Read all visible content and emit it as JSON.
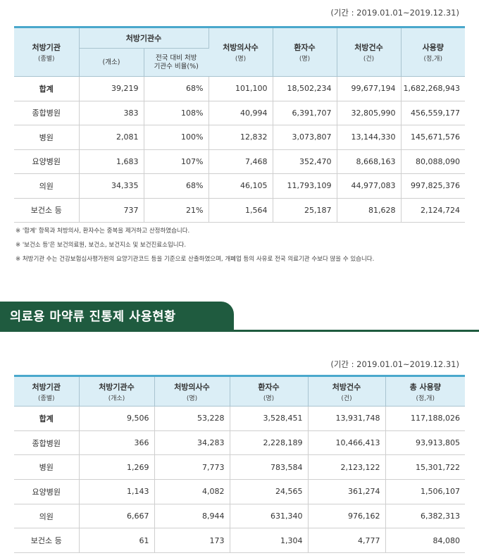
{
  "table1": {
    "period": "(기간 : 2019.01.01~2019.12.31)",
    "headers": {
      "institution": "처방기관",
      "institution_sub": "(종별)",
      "institution_count": "처방기관수",
      "count_unit": "(개소)",
      "ratio": "전국 대비 처방 기관수 비율(%)",
      "doctors": "처방의사수",
      "doctors_unit": "(명)",
      "patients": "환자수",
      "patients_unit": "(명)",
      "prescriptions": "처방건수",
      "prescriptions_unit": "(건)",
      "usage": "사용량",
      "usage_unit": "(정,개)"
    },
    "rows": [
      {
        "name": "합계",
        "count": "39,219",
        "ratio": "68%",
        "doctors": "101,100",
        "patients": "18,502,234",
        "prescriptions": "99,677,194",
        "usage": "1,682,268,943"
      },
      {
        "name": "종합병원",
        "count": "383",
        "ratio": "108%",
        "doctors": "40,994",
        "patients": "6,391,707",
        "prescriptions": "32,805,990",
        "usage": "456,559,177"
      },
      {
        "name": "병원",
        "count": "2,081",
        "ratio": "100%",
        "doctors": "12,832",
        "patients": "3,073,807",
        "prescriptions": "13,144,330",
        "usage": "145,671,576"
      },
      {
        "name": "요양병원",
        "count": "1,683",
        "ratio": "107%",
        "doctors": "7,468",
        "patients": "352,470",
        "prescriptions": "8,668,163",
        "usage": "80,088,090"
      },
      {
        "name": "의원",
        "count": "34,335",
        "ratio": "68%",
        "doctors": "46,105",
        "patients": "11,793,109",
        "prescriptions": "44,977,083",
        "usage": "997,825,376"
      },
      {
        "name": "보건소 등",
        "count": "737",
        "ratio": "21%",
        "doctors": "1,564",
        "patients": "25,187",
        "prescriptions": "81,628",
        "usage": "2,124,724"
      }
    ]
  },
  "notes": [
    "※ '합계' 항목과 처방의사, 환자수는 중복을 제거하고 산정하였습니다.",
    "※ '보건소 등'은 보건의료원, 보건소, 보건지소 및 보건진료소입니다.",
    "※ 처방기관 수는 건강보험심사평가원의 요양기관코드 등을 기준으로 산출하였으며, 개폐업 등의 사유로 전국 의료기관 수보다 많을 수 있습니다."
  ],
  "section_title": "의료용 마약류 진통제 사용현황",
  "table2": {
    "period": "(기간 : 2019.01.01~2019.12.31)",
    "headers": {
      "institution": "처방기관",
      "institution_sub": "(종별)",
      "institution_count": "처방기관수",
      "count_unit": "(개소)",
      "doctors": "처방의사수",
      "doctors_unit": "(명)",
      "patients": "환자수",
      "patients_unit": "(명)",
      "prescriptions": "처방건수",
      "prescriptions_unit": "(건)",
      "usage": "총 사용량",
      "usage_unit": "(정,개)"
    },
    "rows": [
      {
        "name": "합계",
        "count": "9,506",
        "doctors": "53,228",
        "patients": "3,528,451",
        "prescriptions": "13,931,748",
        "usage": "117,188,026"
      },
      {
        "name": "종합병원",
        "count": "366",
        "doctors": "34,283",
        "patients": "2,228,189",
        "prescriptions": "10,466,413",
        "usage": "93,913,805"
      },
      {
        "name": "병원",
        "count": "1,269",
        "doctors": "7,773",
        "patients": "783,584",
        "prescriptions": "2,123,122",
        "usage": "15,301,722"
      },
      {
        "name": "요양병원",
        "count": "1,143",
        "doctors": "4,082",
        "patients": "24,565",
        "prescriptions": "361,274",
        "usage": "1,506,107"
      },
      {
        "name": "의원",
        "count": "6,667",
        "doctors": "8,944",
        "patients": "631,340",
        "prescriptions": "976,162",
        "usage": "6,382,313"
      },
      {
        "name": "보건소 등",
        "count": "61",
        "doctors": "173",
        "patients": "1,304",
        "prescriptions": "4,777",
        "usage": "84,080"
      }
    ]
  }
}
